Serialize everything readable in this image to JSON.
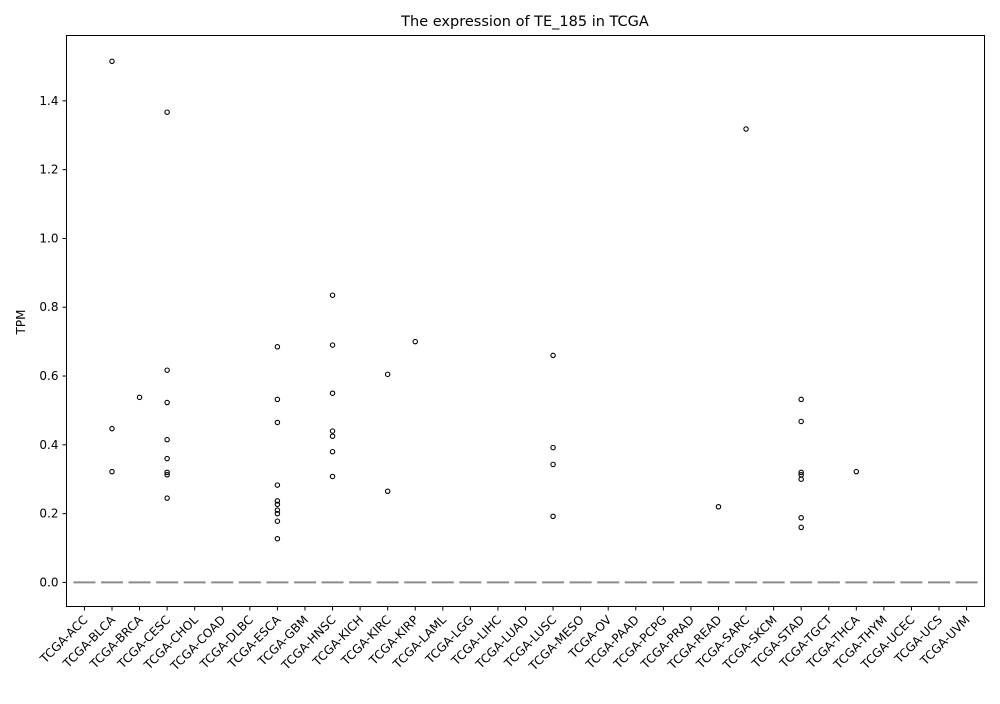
{
  "chart_data": {
    "type": "box",
    "title": "The expression of TE_185 in TCGA",
    "xlabel": "",
    "ylabel": "TPM",
    "ylim": [
      -0.07,
      1.59
    ],
    "yticks": [
      0.0,
      0.2,
      0.4,
      0.6,
      0.8,
      1.0,
      1.2,
      1.4
    ],
    "ytick_labels": [
      "0.0",
      "0.2",
      "0.4",
      "0.6",
      "0.8",
      "1.0",
      "1.2",
      "1.4"
    ],
    "grid": false,
    "box_color": "#8c8c8c",
    "outlier_color": "#000000",
    "categories": [
      {
        "label": "TCGA-ACC",
        "median": 0,
        "outliers": []
      },
      {
        "label": "TCGA-BLCA",
        "median": 0,
        "outliers": [
          1.515,
          0.447,
          0.322
        ]
      },
      {
        "label": "TCGA-BRCA",
        "median": 0,
        "outliers": [
          0.538
        ]
      },
      {
        "label": "TCGA-CESC",
        "median": 0,
        "outliers": [
          1.367,
          0.617,
          0.523,
          0.415,
          0.36,
          0.32,
          0.313,
          0.245
        ]
      },
      {
        "label": "TCGA-CHOL",
        "median": 0,
        "outliers": []
      },
      {
        "label": "TCGA-COAD",
        "median": 0,
        "outliers": []
      },
      {
        "label": "TCGA-DLBC",
        "median": 0,
        "outliers": []
      },
      {
        "label": "TCGA-ESCA",
        "median": 0,
        "outliers": [
          0.685,
          0.532,
          0.465,
          0.283,
          0.237,
          0.227,
          0.21,
          0.2,
          0.178,
          0.127
        ]
      },
      {
        "label": "TCGA-GBM",
        "median": 0,
        "outliers": []
      },
      {
        "label": "TCGA-HNSC",
        "median": 0,
        "outliers": [
          0.835,
          0.69,
          0.55,
          0.44,
          0.425,
          0.38,
          0.308
        ]
      },
      {
        "label": "TCGA-KICH",
        "median": 0,
        "outliers": []
      },
      {
        "label": "TCGA-KIRC",
        "median": 0,
        "outliers": [
          0.605,
          0.265
        ]
      },
      {
        "label": "TCGA-KIRP",
        "median": 0,
        "outliers": [
          0.7
        ]
      },
      {
        "label": "TCGA-LAML",
        "median": 0,
        "outliers": []
      },
      {
        "label": "TCGA-LGG",
        "median": 0,
        "outliers": []
      },
      {
        "label": "TCGA-LIHC",
        "median": 0,
        "outliers": []
      },
      {
        "label": "TCGA-LUAD",
        "median": 0,
        "outliers": []
      },
      {
        "label": "TCGA-LUSC",
        "median": 0,
        "outliers": [
          0.66,
          0.392,
          0.343,
          0.192
        ]
      },
      {
        "label": "TCGA-MESO",
        "median": 0,
        "outliers": []
      },
      {
        "label": "TCGA-OV",
        "median": 0,
        "outliers": []
      },
      {
        "label": "TCGA-PAAD",
        "median": 0,
        "outliers": []
      },
      {
        "label": "TCGA-PCPG",
        "median": 0,
        "outliers": []
      },
      {
        "label": "TCGA-PRAD",
        "median": 0,
        "outliers": []
      },
      {
        "label": "TCGA-READ",
        "median": 0,
        "outliers": [
          0.22
        ]
      },
      {
        "label": "TCGA-SARC",
        "median": 0,
        "outliers": [
          1.318
        ]
      },
      {
        "label": "TCGA-SKCM",
        "median": 0,
        "outliers": []
      },
      {
        "label": "TCGA-STAD",
        "median": 0,
        "outliers": [
          0.532,
          0.468,
          0.32,
          0.313,
          0.3,
          0.188,
          0.16
        ]
      },
      {
        "label": "TCGA-TGCT",
        "median": 0,
        "outliers": []
      },
      {
        "label": "TCGA-THCA",
        "median": 0,
        "outliers": [
          0.322
        ]
      },
      {
        "label": "TCGA-THYM",
        "median": 0,
        "outliers": []
      },
      {
        "label": "TCGA-UCEC",
        "median": 0,
        "outliers": []
      },
      {
        "label": "TCGA-UCS",
        "median": 0,
        "outliers": []
      },
      {
        "label": "TCGA-UVM",
        "median": 0,
        "outliers": []
      }
    ]
  }
}
